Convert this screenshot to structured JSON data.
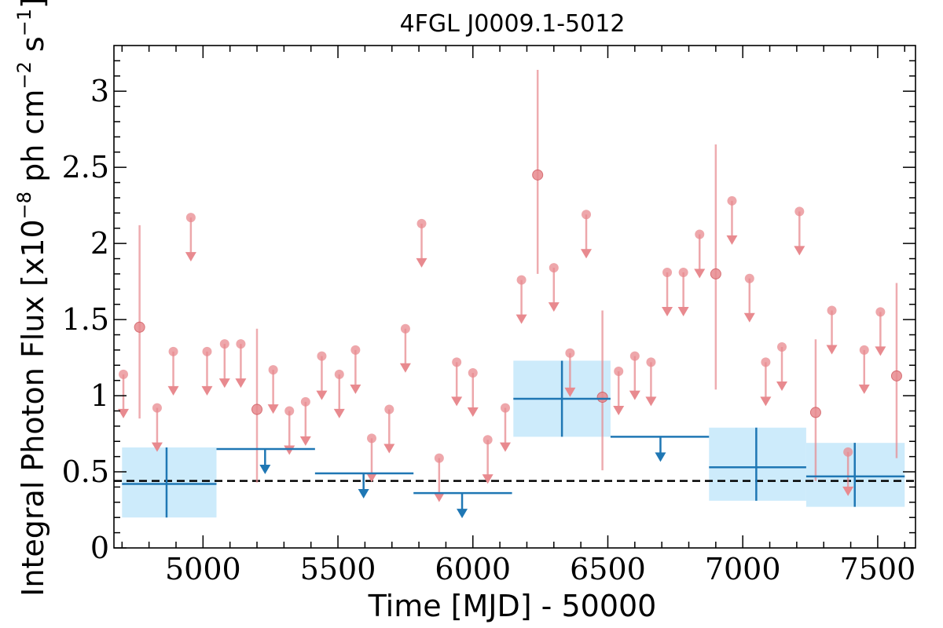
{
  "chart_data": {
    "type": "scatter",
    "title": "4FGL J0009.1-5012",
    "xlabel": "Time [MJD] - 50000",
    "ylabel": "Integral Photon Flux [x10$^{-8}$ ph cm$^{-2}$ s$^{-1}$]",
    "ylabel_parts": {
      "prefix": "Integral Photon Flux [x10",
      "exp1": "−8",
      "mid": " ph cm",
      "exp2": "−2",
      "mid2": " s",
      "exp3": "−1",
      "suffix": "]"
    },
    "xlim": [
      4670,
      7640
    ],
    "ylim": [
      0,
      3.3
    ],
    "x_ticks": [
      5000,
      5500,
      6000,
      6500,
      7000,
      7500
    ],
    "x_tick_labels": [
      "5000",
      "5500",
      "6000",
      "6500",
      "7000",
      "7500"
    ],
    "y_ticks": [
      0,
      0.5,
      1,
      1.5,
      2,
      2.5,
      3
    ],
    "y_tick_labels": [
      "0",
      "0.5",
      "1",
      "1.5",
      "2",
      "2.5",
      "3"
    ],
    "grid": false,
    "legend": "none",
    "colors": {
      "short_bins": "#e88a8f",
      "long_bins": "#1f77b4",
      "long_bin_band": "#cdebfb",
      "mean_line": "#000000"
    },
    "mean_flux": 0.44,
    "series": [
      {
        "kind": "short-bin-upper-limits",
        "x": [
          4705,
          4830,
          4890,
          4955,
          5015,
          5080,
          5140,
          5260,
          5320,
          5380,
          5440,
          5505,
          5565,
          5625,
          5690,
          5750,
          5810,
          5875,
          5940,
          6000,
          6055,
          6120,
          6180,
          6300,
          6360,
          6420,
          6540,
          6600,
          6660,
          6720,
          6780,
          6840,
          6960,
          7025,
          7085,
          7145,
          7210,
          7330,
          7390,
          7450,
          7510
        ],
        "y": [
          1.14,
          0.92,
          1.29,
          2.17,
          1.29,
          1.34,
          1.34,
          1.17,
          0.9,
          0.96,
          1.26,
          1.14,
          1.3,
          0.72,
          0.91,
          1.44,
          2.13,
          0.59,
          1.22,
          1.15,
          0.71,
          0.92,
          1.76,
          1.84,
          1.28,
          2.19,
          1.16,
          1.26,
          1.22,
          1.81,
          1.81,
          2.06,
          2.28,
          1.77,
          1.22,
          1.32,
          2.21,
          1.56,
          0.63,
          1.3,
          1.55
        ]
      },
      {
        "kind": "short-bin-detections",
        "x": [
          4765,
          5200,
          6240,
          6480,
          6900,
          7270,
          7570
        ],
        "y": [
          1.45,
          0.91,
          2.45,
          0.99,
          1.8,
          0.89,
          1.13
        ],
        "y_low": [
          0.85,
          0.43,
          1.8,
          0.51,
          1.04,
          0.44,
          0.59
        ],
        "y_high": [
          2.12,
          1.44,
          3.14,
          1.56,
          2.65,
          1.37,
          1.74
        ]
      },
      {
        "kind": "long-bin-detections",
        "x": [
          4865,
          6330,
          7050,
          7415
        ],
        "x_low": [
          4700,
          6150,
          6875,
          7235
        ],
        "x_high": [
          5050,
          6510,
          7235,
          7600
        ],
        "y": [
          0.42,
          0.98,
          0.53,
          0.47
        ],
        "y_low": [
          0.2,
          0.73,
          0.31,
          0.27
        ],
        "y_high": [
          0.66,
          1.23,
          0.79,
          0.69
        ]
      },
      {
        "kind": "long-bin-upper-limits",
        "x": [
          5230,
          5595,
          5960,
          6695
        ],
        "x_low": [
          5050,
          5415,
          5780,
          6510
        ],
        "x_high": [
          5415,
          5780,
          6145,
          6875
        ],
        "y": [
          0.65,
          0.49,
          0.36,
          0.73
        ]
      }
    ]
  }
}
